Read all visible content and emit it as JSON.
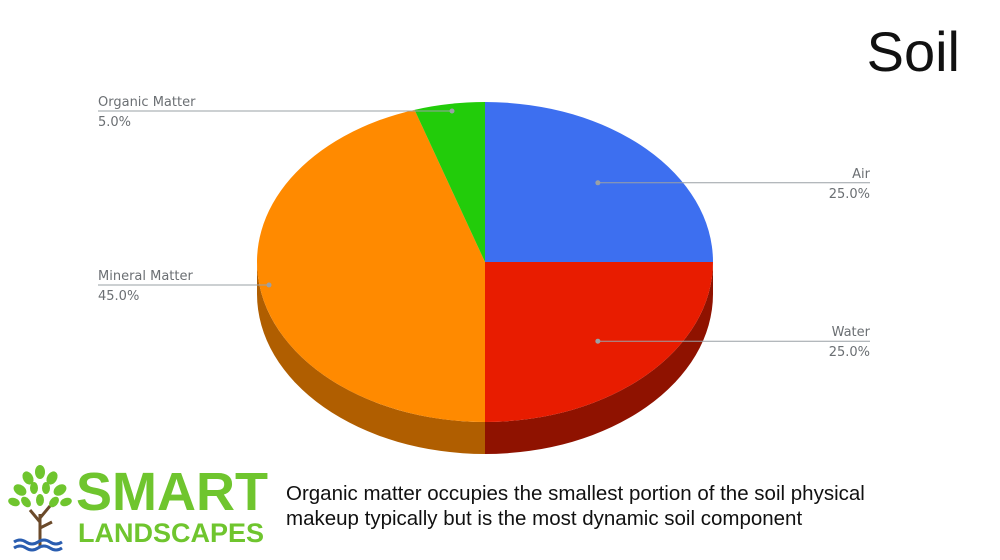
{
  "slide": {
    "title": "Soil",
    "caption_lines": [
      "Organic matter occupies the smallest portion of the soil physical",
      "makeup typically but is the most dynamic soil component"
    ]
  },
  "logo": {
    "word1": "SMART",
    "word2": "LANDSCAPES",
    "brand_green": "#6fc52e",
    "brand_blue": "#2a5db0"
  },
  "chart_data": {
    "type": "pie",
    "style": "3d",
    "title": "",
    "series": [
      {
        "name": "Air",
        "value": 25.0,
        "label": "25.0%",
        "color": "#3d6ff0",
        "side_color": "#2a4fb0"
      },
      {
        "name": "Water",
        "value": 25.0,
        "label": "25.0%",
        "color": "#e81c00",
        "side_color": "#8f1200"
      },
      {
        "name": "Mineral Matter",
        "value": 45.0,
        "label": "45.0%",
        "color": "#ff8a00",
        "side_color": "#b05e00"
      },
      {
        "name": "Organic Matter",
        "value": 5.0,
        "label": "5.0%",
        "color": "#22cc0a",
        "side_color": "#168a06"
      }
    ],
    "label_placement": "outside with leader lines"
  }
}
